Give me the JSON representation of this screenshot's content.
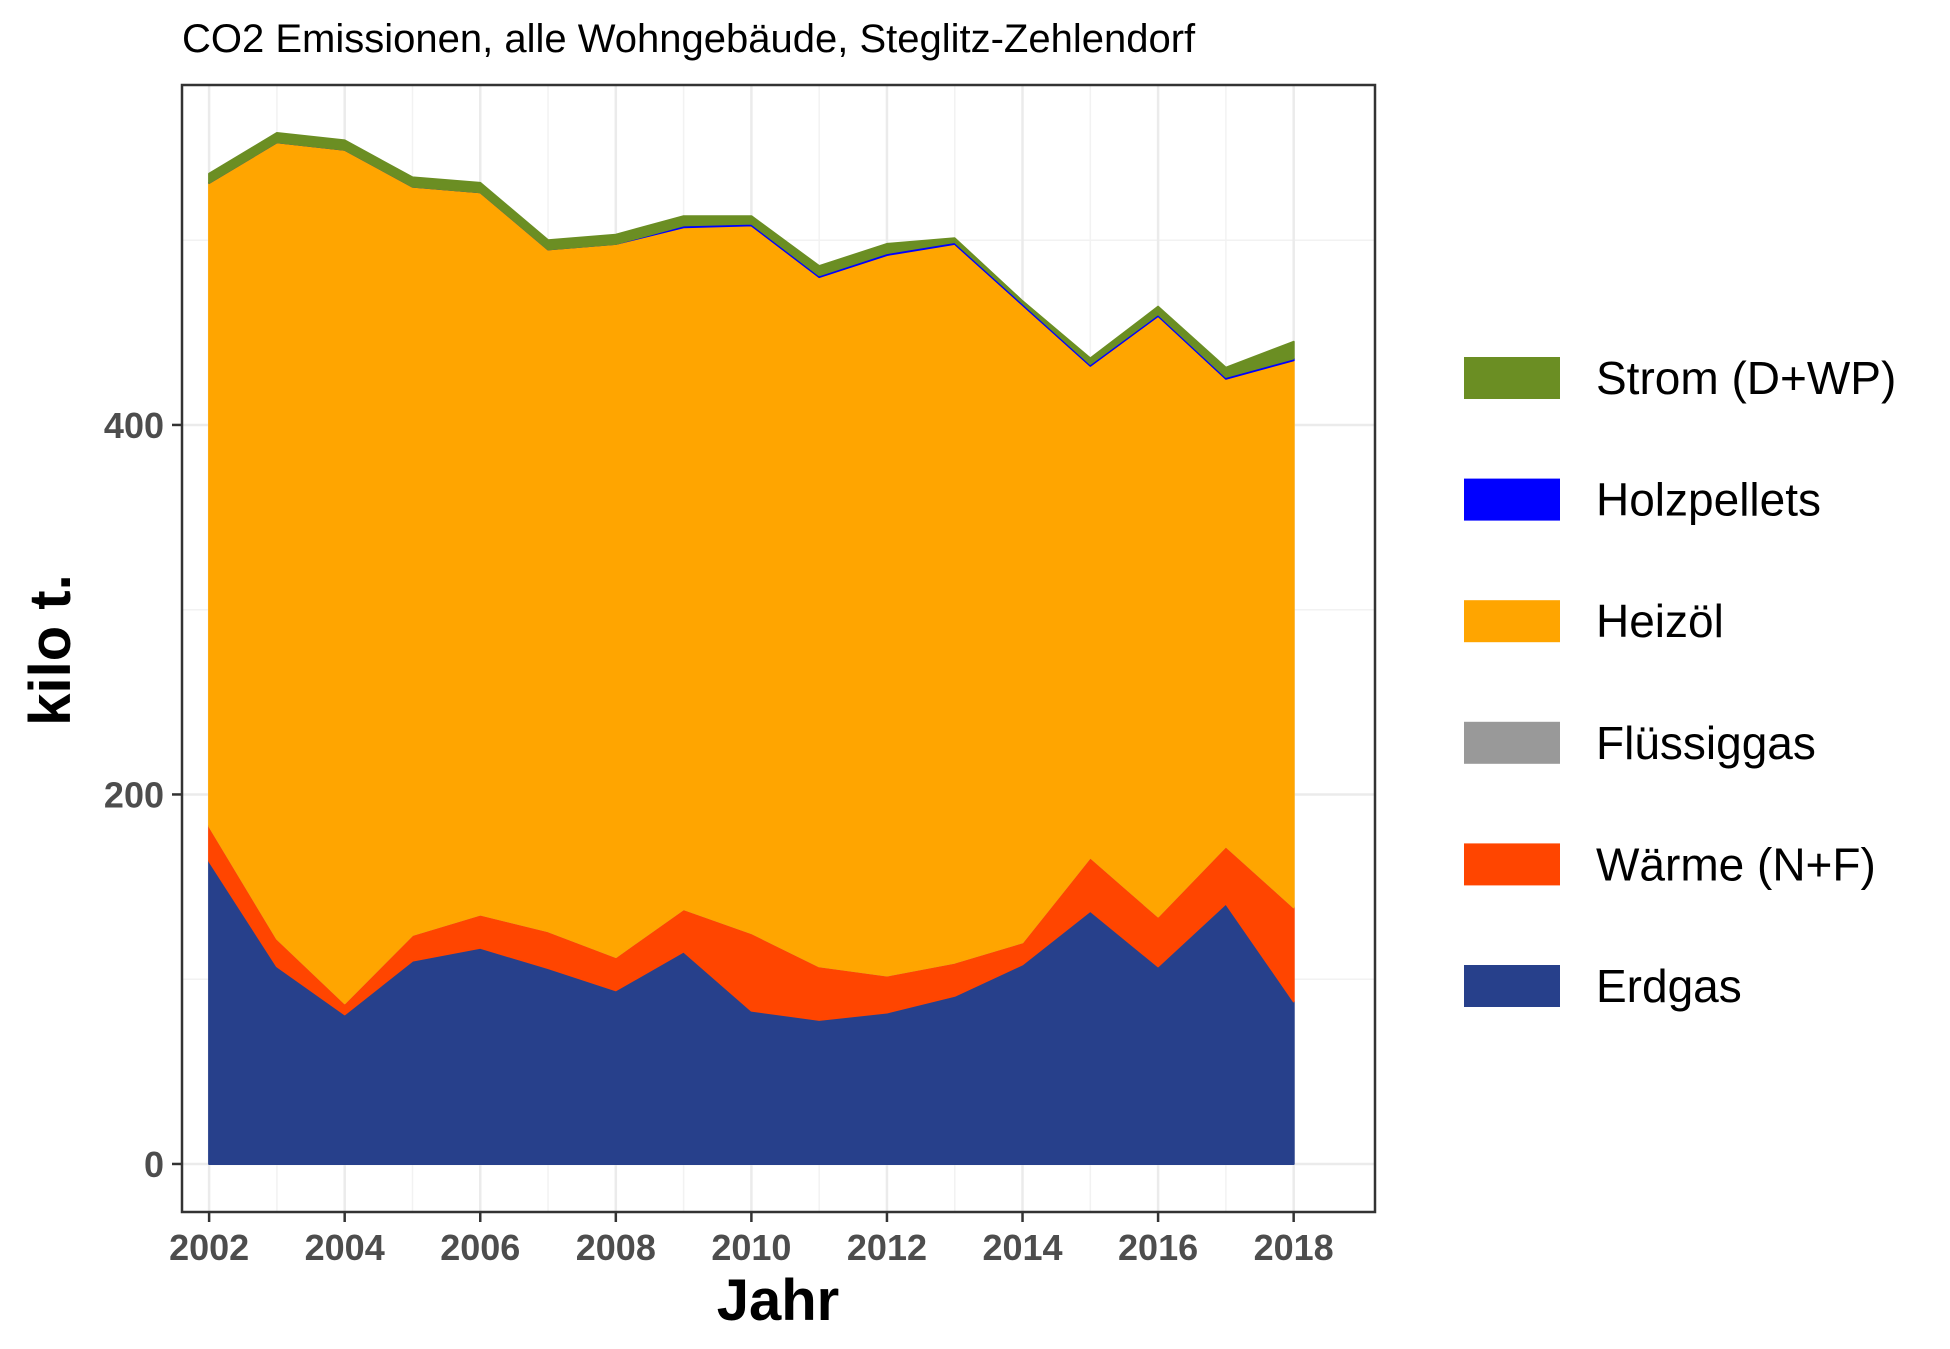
{
  "chart_data": {
    "type": "area",
    "stacked": true,
    "title": "CO2 Emissionen, alle Wohngebäude, Steglitz-Zehlendorf",
    "xlabel": "Jahr",
    "ylabel": "kilo t.",
    "xlim": [
      2001.6,
      2019.2
    ],
    "ylim": [
      -26,
      584
    ],
    "x_ticks": [
      2002,
      2004,
      2006,
      2008,
      2010,
      2012,
      2014,
      2016,
      2018
    ],
    "y_ticks": [
      0,
      200,
      400
    ],
    "grid": true,
    "legend_position": "right",
    "x": [
      2002,
      2003,
      2004,
      2005,
      2006,
      2007,
      2008,
      2009,
      2010,
      2011,
      2012,
      2013,
      2014,
      2015,
      2016,
      2017,
      2018
    ],
    "series": [
      {
        "name": "Erdgas",
        "color": "#27408b",
        "values": [
          164,
          107,
          81,
          110,
          117,
          106,
          94,
          115,
          83,
          78,
          82,
          91,
          108,
          137,
          107,
          141,
          88
        ]
      },
      {
        "name": "Wärme (N+F)",
        "color": "#ff4500",
        "values": [
          19,
          15,
          6,
          14,
          18,
          20,
          18,
          23,
          42,
          29,
          20,
          18,
          12,
          29,
          27,
          31,
          51
        ]
      },
      {
        "name": "Flüssiggas",
        "color": "#999999",
        "values": [
          0,
          0,
          0,
          0,
          0,
          0,
          0,
          0,
          0,
          0,
          0,
          0,
          0,
          0,
          0,
          0,
          0
        ]
      },
      {
        "name": "Heizöl",
        "color": "#ffa500",
        "values": [
          348,
          431,
          462,
          405,
          391,
          369,
          386,
          369,
          383,
          373,
          390,
          389,
          345,
          266,
          325,
          253,
          296
        ]
      },
      {
        "name": "Holzpellets",
        "color": "#0000ff",
        "values": [
          0,
          0,
          0,
          0,
          0,
          0,
          0,
          1,
          1,
          1,
          1,
          1,
          1,
          1,
          1,
          1,
          1
        ]
      },
      {
        "name": "Strom (D+WP)",
        "color": "#6b8e23",
        "values": [
          5,
          5,
          5,
          5,
          5,
          5,
          5,
          5,
          4,
          5,
          5,
          2,
          1,
          3,
          4,
          5,
          9
        ]
      }
    ],
    "legend_order": [
      "Strom (D+WP)",
      "Holzpellets",
      "Heizöl",
      "Flüssiggas",
      "Wärme (N+F)",
      "Erdgas"
    ]
  }
}
